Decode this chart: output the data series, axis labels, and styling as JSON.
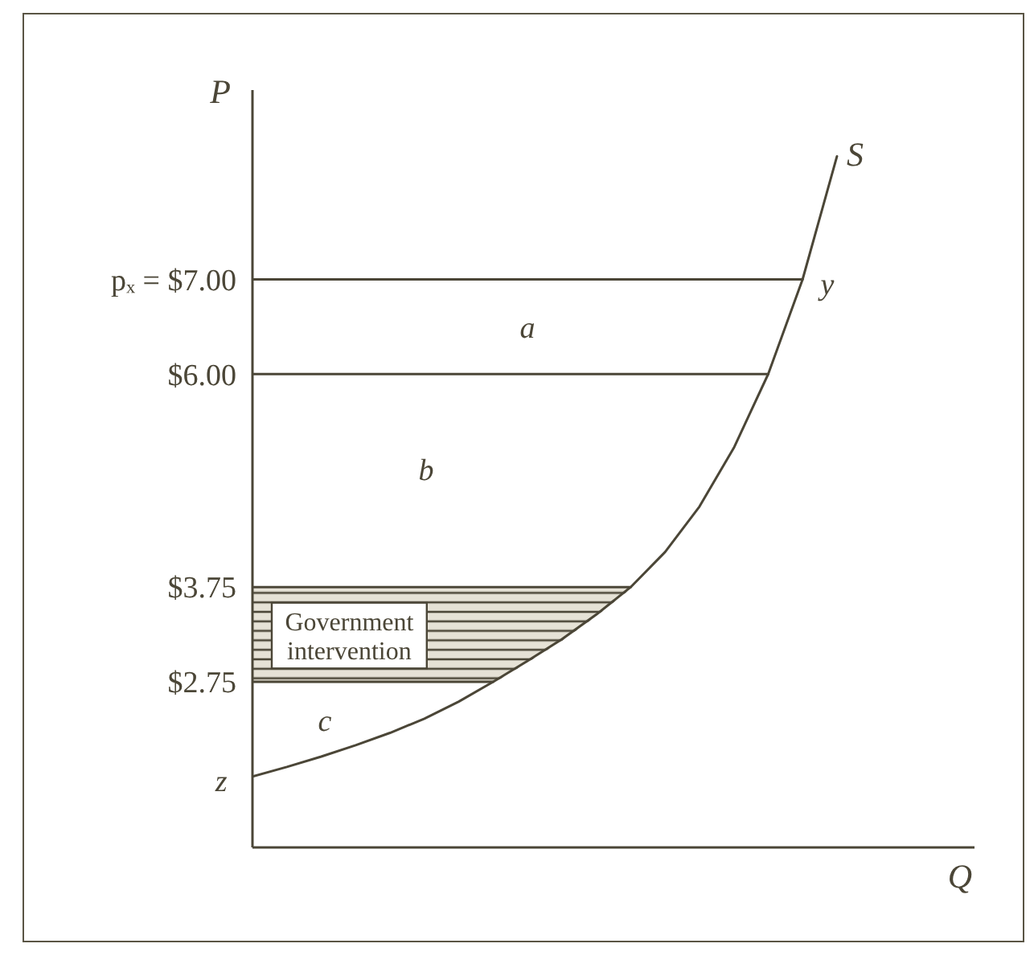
{
  "chart_data": {
    "type": "line",
    "xlabel": "Q",
    "ylabel": "P",
    "categories": [
      null,
      null,
      null,
      null,
      null,
      null,
      null,
      null,
      null,
      null,
      null,
      null,
      null,
      null,
      null,
      null,
      null,
      null,
      null,
      null,
      null,
      null
    ],
    "series": [
      {
        "name": "S",
        "color": "#4b4637",
        "values": [
          1.75,
          1.85,
          1.96,
          2.08,
          2.21,
          2.36,
          2.54,
          2.75,
          2.97,
          3.2,
          3.46,
          3.75,
          4.12,
          4.6,
          5.22,
          6.0,
          7.0,
          8.3,
          null,
          null,
          null,
          null
        ]
      },
      {
        "color": "#4b4637",
        "values": [
          7,
          7,
          7,
          7,
          7,
          7,
          7,
          7,
          7,
          7,
          7,
          7,
          7,
          7,
          7,
          7,
          7,
          null,
          null,
          null,
          null,
          null
        ]
      },
      {
        "color": "#4b4637",
        "values": [
          6,
          6,
          6,
          6,
          6,
          6,
          6,
          6,
          6,
          6,
          6,
          6,
          6,
          6,
          6,
          6,
          null,
          null,
          null,
          null,
          null,
          null
        ]
      },
      {
        "color": "#4b4637",
        "values": [
          3.75,
          3.75,
          3.75,
          3.75,
          3.75,
          3.75,
          3.75,
          3.75,
          3.75,
          3.75,
          3.75,
          3.75,
          null,
          null,
          null,
          null,
          null,
          null,
          null,
          null,
          null,
          null
        ]
      },
      {
        "color": "#4b4637",
        "values": [
          2.75,
          2.75,
          2.75,
          2.75,
          2.75,
          2.75,
          2.75,
          2.75,
          null,
          null,
          null,
          null,
          null,
          null,
          null,
          null,
          null,
          null,
          null,
          null,
          null,
          null
        ]
      }
    ],
    "ylim": [
      1,
      9
    ],
    "yticks": [
      {
        "value": 2.75,
        "label": "$2.75"
      },
      {
        "value": 3.75,
        "label": "$3.75"
      },
      {
        "value": 6,
        "label": "$6.00"
      },
      {
        "value": 7,
        "label": "pₓ = $7.00"
      }
    ],
    "bands": [
      {
        "axis": "y",
        "from": 2.75,
        "to": 3.75,
        "label": "Government intervention"
      }
    ],
    "annotations": [
      "a",
      "b",
      "c",
      "y",
      "z"
    ],
    "tick_labels": "y"
  }
}
